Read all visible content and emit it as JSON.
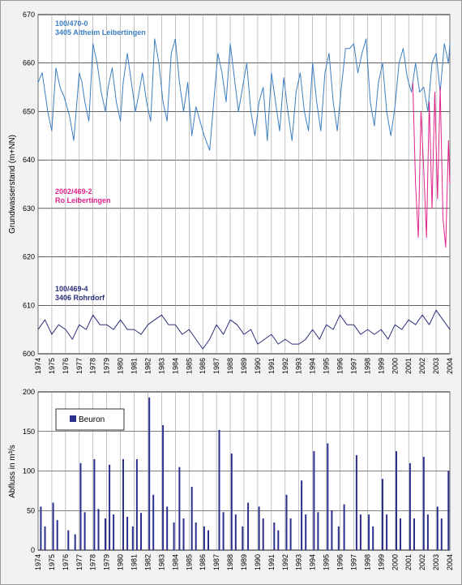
{
  "chart_data": [
    {
      "type": "line",
      "ylabel": "Grundwasserstand (m+NN)",
      "ylim": [
        600,
        670
      ],
      "yticks": [
        600,
        610,
        620,
        630,
        640,
        650,
        660,
        670
      ],
      "xlim": [
        1974,
        2004
      ],
      "xticks": [
        "1974",
        "1975",
        "1976",
        "1977",
        "1978",
        "1979",
        "1980",
        "1981",
        "1982",
        "1983",
        "1984",
        "1985",
        "1986",
        "1987",
        "1988",
        "1989",
        "1990",
        "1991",
        "1992",
        "1993",
        "1994",
        "1995",
        "1996",
        "1997",
        "1998",
        "1999",
        "2000",
        "2001",
        "2002",
        "2003",
        "2004"
      ],
      "grid": true,
      "series": [
        {
          "name": "100/470-0 3405 Altheim Leibertingen",
          "label_lines": [
            "100/470-0",
            "3405 Altheim Leibertingen"
          ],
          "color": "#3d7fc3",
          "x": [
            1974.0,
            1974.3,
            1974.7,
            1975.0,
            1975.3,
            1975.6,
            1975.9,
            1976.3,
            1976.6,
            1977.0,
            1977.2,
            1977.4,
            1977.7,
            1978.0,
            1978.3,
            1978.6,
            1978.9,
            1979.1,
            1979.4,
            1979.7,
            1980.0,
            1980.2,
            1980.5,
            1980.8,
            1981.1,
            1981.3,
            1981.6,
            1981.9,
            1982.2,
            1982.5,
            1982.8,
            1983.1,
            1983.4,
            1983.7,
            1984.0,
            1984.3,
            1984.6,
            1984.9,
            1985.2,
            1985.5,
            1985.8,
            1986.1,
            1986.5,
            1986.8,
            1987.1,
            1987.4,
            1987.7,
            1988.0,
            1988.3,
            1988.6,
            1988.9,
            1989.2,
            1989.5,
            1989.8,
            1990.1,
            1990.4,
            1990.7,
            1991.0,
            1991.3,
            1991.6,
            1991.9,
            1992.2,
            1992.5,
            1992.8,
            1993.1,
            1993.4,
            1993.7,
            1994.0,
            1994.3,
            1994.6,
            1994.9,
            1995.2,
            1995.5,
            1995.8,
            1996.1,
            1996.4,
            1996.7,
            1997.0,
            1997.3,
            1997.6,
            1997.9,
            1998.2,
            1998.5,
            1998.8,
            1999.1,
            1999.4,
            1999.7,
            2000.0,
            2000.3,
            2000.6,
            2000.9,
            2001.2,
            2001.5,
            2001.8,
            2002.1,
            2002.4,
            2002.7,
            2003.0,
            2003.3,
            2003.6,
            2003.9,
            2004.0
          ],
          "y": [
            656,
            658,
            650,
            646,
            659,
            655,
            653,
            649,
            644,
            658,
            656,
            652,
            648,
            664,
            660,
            654,
            650,
            655,
            659,
            652,
            648,
            656,
            662,
            656,
            650,
            653,
            658,
            652,
            648,
            665,
            660,
            652,
            648,
            662,
            665,
            656,
            650,
            656,
            645,
            651,
            648,
            645,
            642,
            652,
            662,
            658,
            652,
            664,
            657,
            650,
            655,
            660,
            650,
            645,
            652,
            655,
            644,
            658,
            652,
            646,
            657,
            650,
            644,
            654,
            658,
            650,
            646,
            660,
            652,
            646,
            658,
            662,
            652,
            646,
            655,
            663,
            663,
            664,
            658,
            662,
            665,
            652,
            647,
            656,
            660,
            650,
            645,
            651,
            660,
            663,
            657,
            654,
            660,
            654,
            655,
            650,
            660,
            662,
            654,
            664,
            660,
            664
          ]
        },
        {
          "name": "2002/469-2 Ro Leibertingen",
          "label_lines": [
            "2002/469-2",
            "Ro Leibertingen"
          ],
          "color": "#e0238a",
          "x": [
            2001.3,
            2001.5,
            2001.7,
            2001.9,
            2002.1,
            2002.3,
            2002.5,
            2002.7,
            2002.9,
            2003.1,
            2003.3,
            2003.5,
            2003.7,
            2003.9,
            2004.0
          ],
          "y": [
            656,
            635,
            624,
            650,
            638,
            624,
            652,
            630,
            654,
            632,
            655,
            628,
            622,
            644,
            635
          ]
        },
        {
          "name": "100/469-4 3406 Rohrdorf",
          "label_lines": [
            "100/469-4",
            "3406 Rohrdorf"
          ],
          "color": "#2a2f7a",
          "x": [
            1974.0,
            1974.5,
            1975.0,
            1975.5,
            1976.0,
            1976.5,
            1977.0,
            1977.5,
            1978.0,
            1978.5,
            1979.0,
            1979.5,
            1980.0,
            1980.5,
            1981.0,
            1981.5,
            1982.0,
            1982.5,
            1983.0,
            1983.5,
            1984.0,
            1984.5,
            1985.0,
            1985.5,
            1986.0,
            1986.5,
            1987.0,
            1987.5,
            1988.0,
            1988.5,
            1989.0,
            1989.5,
            1990.0,
            1990.5,
            1991.0,
            1991.5,
            1992.0,
            1992.5,
            1993.0,
            1993.5,
            1994.0,
            1994.5,
            1995.0,
            1995.5,
            1996.0,
            1996.5,
            1997.0,
            1997.5,
            1998.0,
            1998.5,
            1999.0,
            1999.5,
            2000.0,
            2000.5,
            2001.0,
            2001.5,
            2002.0,
            2002.5,
            2003.0,
            2003.5,
            2004.0
          ],
          "y": [
            605,
            607,
            604,
            606,
            605,
            603,
            606,
            605,
            608,
            606,
            606,
            605,
            607,
            605,
            605,
            604,
            606,
            607,
            608,
            606,
            606,
            604,
            605,
            603,
            601,
            603,
            606,
            604,
            607,
            606,
            604,
            605,
            602,
            603,
            604,
            602,
            603,
            602,
            602,
            603,
            605,
            603,
            606,
            605,
            608,
            606,
            606,
            604,
            605,
            604,
            605,
            603,
            606,
            605,
            607,
            606,
            608,
            606,
            609,
            607,
            605
          ]
        }
      ]
    },
    {
      "type": "bar",
      "ylabel": "Abfluss in m³/s",
      "ylim": [
        0,
        200
      ],
      "yticks": [
        0,
        50,
        100,
        150,
        200
      ],
      "xlim": [
        1974,
        2004
      ],
      "xticks": [
        "1974",
        "1975",
        "1976",
        "1977",
        "1978",
        "1979",
        "1980",
        "1981",
        "1982",
        "1983",
        "1984",
        "1985",
        "1986",
        "1987",
        "1988",
        "1989",
        "1990",
        "1991",
        "1992",
        "1993",
        "1994",
        "1995",
        "1996",
        "1997",
        "1998",
        "1999",
        "2000",
        "2001",
        "2002",
        "2003",
        "2004"
      ],
      "grid": true,
      "legend": {
        "placement": "top-left",
        "entries": [
          "Beuron"
        ]
      },
      "series": [
        {
          "name": "Beuron",
          "color": "#2b2f8c",
          "x": [
            1974.2,
            1974.5,
            1975.1,
            1975.4,
            1976.2,
            1976.7,
            1977.1,
            1977.4,
            1978.1,
            1978.4,
            1978.9,
            1979.2,
            1979.5,
            1980.2,
            1980.5,
            1980.9,
            1981.2,
            1981.5,
            1982.1,
            1982.4,
            1983.1,
            1983.4,
            1983.9,
            1984.3,
            1984.6,
            1985.2,
            1985.5,
            1986.1,
            1986.4,
            1987.2,
            1987.5,
            1988.1,
            1988.4,
            1988.9,
            1989.3,
            1990.1,
            1990.4,
            1991.2,
            1991.5,
            1992.1,
            1992.4,
            1993.2,
            1993.5,
            1994.1,
            1994.4,
            1995.1,
            1995.4,
            1995.9,
            1996.3,
            1997.2,
            1997.5,
            1998.1,
            1998.4,
            1999.1,
            1999.4,
            2000.1,
            2000.4,
            2001.1,
            2001.4,
            2002.1,
            2002.4,
            2003.1,
            2003.4,
            2003.9
          ],
          "values": [
            55,
            30,
            60,
            38,
            25,
            20,
            110,
            48,
            115,
            52,
            40,
            108,
            45,
            115,
            42,
            30,
            115,
            47,
            193,
            70,
            158,
            55,
            35,
            105,
            40,
            80,
            35,
            30,
            25,
            152,
            48,
            122,
            45,
            30,
            60,
            55,
            40,
            35,
            25,
            70,
            40,
            88,
            45,
            125,
            48,
            135,
            50,
            30,
            58,
            120,
            45,
            45,
            30,
            90,
            45,
            125,
            40,
            110,
            40,
            118,
            45,
            55,
            40,
            100
          ]
        }
      ]
    }
  ]
}
